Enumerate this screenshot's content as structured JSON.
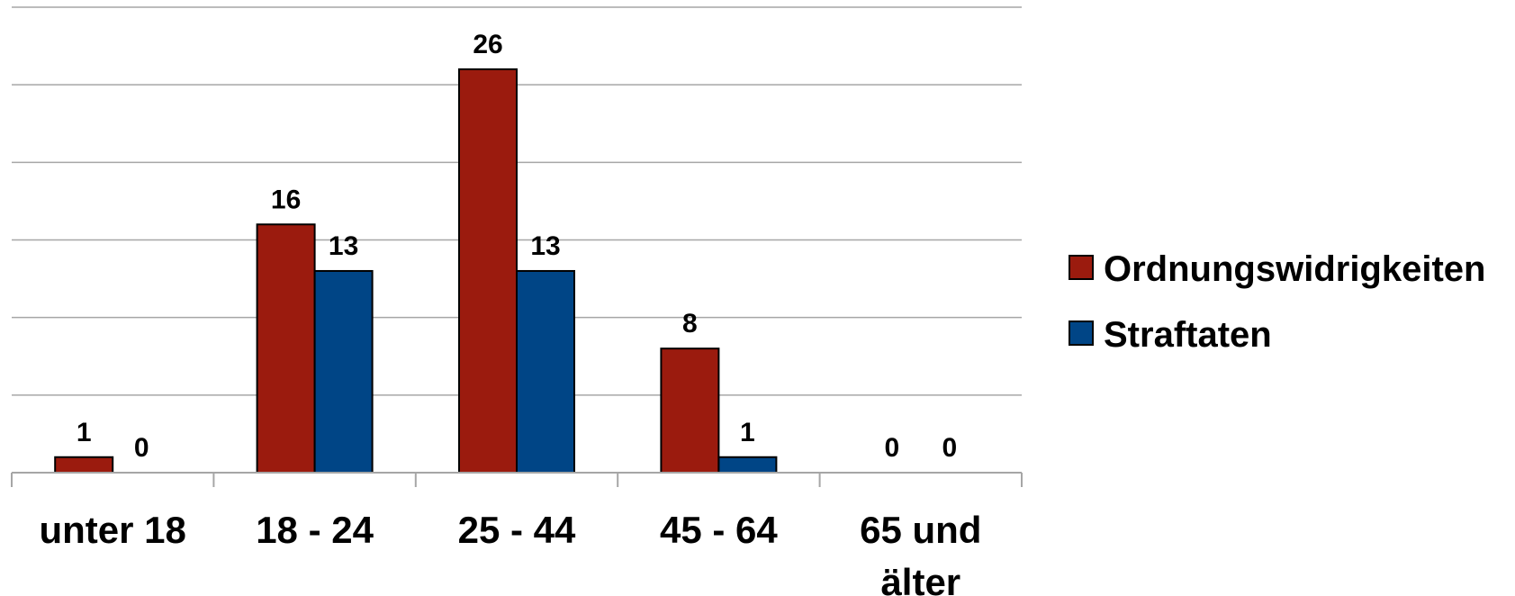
{
  "chart_data": {
    "type": "bar",
    "title": "",
    "xlabel": "",
    "ylabel": "",
    "categories": [
      "unter 18",
      "18 - 24",
      "25 - 44",
      "45 - 64",
      "65 und älter"
    ],
    "category_lines": [
      [
        "unter 18"
      ],
      [
        "18 - 24"
      ],
      [
        "25 - 44"
      ],
      [
        "45 - 64"
      ],
      [
        "65 und",
        "älter"
      ]
    ],
    "series": [
      {
        "name": "Ordnungswidrigkeiten",
        "values": [
          1,
          16,
          26,
          8,
          0
        ],
        "color": "#9B1B0E"
      },
      {
        "name": "Straftaten",
        "values": [
          0,
          13,
          13,
          1,
          0
        ],
        "color": "#004586"
      }
    ],
    "ylim": [
      0,
      30
    ],
    "ytick_step": 5,
    "y_axis_labels_shown": false,
    "grid": true,
    "grid_color": "#A6A6A6",
    "data_labels": true,
    "legend_position": "right"
  }
}
